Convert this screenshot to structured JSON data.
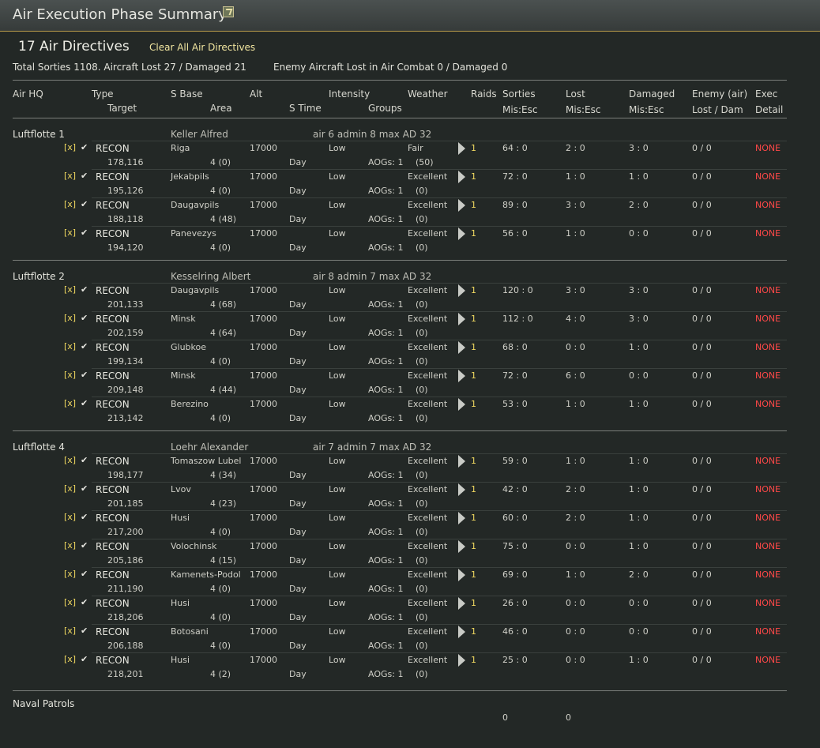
{
  "window": {
    "title": "Air Execution Phase Summary",
    "icon": "map-icon"
  },
  "summary": {
    "directives_count": "17 Air Directives",
    "clear_all_label": "Clear All Air Directives",
    "totals": "Total Sorties 1108. Aircraft Lost 27 / Damaged 21",
    "enemy": "Enemy Aircraft Lost in Air Combat 0 / Damaged 0"
  },
  "headers": {
    "air_hq": "Air HQ",
    "type": "Type",
    "target": "Target",
    "s_base": "S Base",
    "area": "Area",
    "alt": "Alt",
    "s_time": "S Time",
    "intensity": "Intensity",
    "groups": "Groups",
    "weather": "Weather",
    "raids": "Raids",
    "sorties": "Sorties",
    "sorties_sub": "Mis:Esc",
    "lost": "Lost",
    "lost_sub": "Mis:Esc",
    "damaged": "Damaged",
    "damaged_sub": "Mis:Esc",
    "enemy": "Enemy (air)",
    "enemy_sub": "Lost / Dam",
    "exec": "Exec",
    "exec_sub": "Detail"
  },
  "hqs": [
    {
      "name": "Luftflotte 1",
      "commander": "Keller Alfred",
      "stats": "air 6    admin 8    max AD 32",
      "rows": [
        {
          "checkbox": "[x]",
          "type": "RECON",
          "target": "178,116",
          "base": "Riga",
          "area": "4 (0)",
          "alt": "17000",
          "time": "Day",
          "intensity": "Low",
          "groups": "AOGs: 1",
          "weather": "Fair",
          "weather_sub": "(50)",
          "raids": "1",
          "sorties": "64 : 0",
          "lost": "2 : 0",
          "damaged": "3 : 0",
          "enemy": "0 / 0",
          "exec": "NONE"
        },
        {
          "checkbox": "[x]",
          "type": "RECON",
          "target": "195,126",
          "base": "Jekabpils",
          "area": "4 (0)",
          "alt": "17000",
          "time": "Day",
          "intensity": "Low",
          "groups": "AOGs: 1",
          "weather": "Excellent",
          "weather_sub": "(0)",
          "raids": "1",
          "sorties": "72 : 0",
          "lost": "1 : 0",
          "damaged": "1 : 0",
          "enemy": "0 / 0",
          "exec": "NONE"
        },
        {
          "checkbox": "[x]",
          "type": "RECON",
          "target": "188,118",
          "base": "Daugavpils",
          "area": "4 (48)",
          "alt": "17000",
          "time": "Day",
          "intensity": "Low",
          "groups": "AOGs: 1",
          "weather": "Excellent",
          "weather_sub": "(0)",
          "raids": "1",
          "sorties": "89 : 0",
          "lost": "3 : 0",
          "damaged": "2 : 0",
          "enemy": "0 / 0",
          "exec": "NONE"
        },
        {
          "checkbox": "[x]",
          "type": "RECON",
          "target": "194,120",
          "base": "Panevezys",
          "area": "4 (0)",
          "alt": "17000",
          "time": "Day",
          "intensity": "Low",
          "groups": "AOGs: 1",
          "weather": "Excellent",
          "weather_sub": "(0)",
          "raids": "1",
          "sorties": "56 : 0",
          "lost": "1 : 0",
          "damaged": "0 : 0",
          "enemy": "0 / 0",
          "exec": "NONE"
        }
      ]
    },
    {
      "name": "Luftflotte 2",
      "commander": "Kesselring Albert",
      "stats": "air 8    admin 7    max AD 32",
      "rows": [
        {
          "checkbox": "[x]",
          "type": "RECON",
          "target": "201,133",
          "base": "Daugavpils",
          "area": "4 (68)",
          "alt": "17000",
          "time": "Day",
          "intensity": "Low",
          "groups": "AOGs: 1",
          "weather": "Excellent",
          "weather_sub": "(0)",
          "raids": "1",
          "sorties": "120 : 0",
          "lost": "3 : 0",
          "damaged": "3 : 0",
          "enemy": "0 / 0",
          "exec": "NONE"
        },
        {
          "checkbox": "[x]",
          "type": "RECON",
          "target": "202,159",
          "base": "Minsk",
          "area": "4 (64)",
          "alt": "17000",
          "time": "Day",
          "intensity": "Low",
          "groups": "AOGs: 1",
          "weather": "Excellent",
          "weather_sub": "(0)",
          "raids": "1",
          "sorties": "112 : 0",
          "lost": "4 : 0",
          "damaged": "3 : 0",
          "enemy": "0 / 0",
          "exec": "NONE"
        },
        {
          "checkbox": "[x]",
          "type": "RECON",
          "target": "199,134",
          "base": "Glubkoe",
          "area": "4 (0)",
          "alt": "17000",
          "time": "Day",
          "intensity": "Low",
          "groups": "AOGs: 1",
          "weather": "Excellent",
          "weather_sub": "(0)",
          "raids": "1",
          "sorties": "68 : 0",
          "lost": "0 : 0",
          "damaged": "1 : 0",
          "enemy": "0 / 0",
          "exec": "NONE"
        },
        {
          "checkbox": "[x]",
          "type": "RECON",
          "target": "209,148",
          "base": "Minsk",
          "area": "4 (44)",
          "alt": "17000",
          "time": "Day",
          "intensity": "Low",
          "groups": "AOGs: 1",
          "weather": "Excellent",
          "weather_sub": "(0)",
          "raids": "1",
          "sorties": "72 : 0",
          "lost": "6 : 0",
          "damaged": "0 : 0",
          "enemy": "0 / 0",
          "exec": "NONE"
        },
        {
          "checkbox": "[x]",
          "type": "RECON",
          "target": "213,142",
          "base": "Berezino",
          "area": "4 (0)",
          "alt": "17000",
          "time": "Day",
          "intensity": "Low",
          "groups": "AOGs: 1",
          "weather": "Excellent",
          "weather_sub": "(0)",
          "raids": "1",
          "sorties": "53 : 0",
          "lost": "1 : 0",
          "damaged": "1 : 0",
          "enemy": "0 / 0",
          "exec": "NONE"
        }
      ]
    },
    {
      "name": "Luftflotte 4",
      "commander": "Loehr Alexander",
      "stats": "air 7    admin 7    max AD 32",
      "rows": [
        {
          "checkbox": "[x]",
          "type": "RECON",
          "target": "198,177",
          "base": "Tomaszow Lubel",
          "area": "4 (34)",
          "alt": "17000",
          "time": "Day",
          "intensity": "Low",
          "groups": "AOGs: 1",
          "weather": "Excellent",
          "weather_sub": "(0)",
          "raids": "1",
          "sorties": "59 : 0",
          "lost": "1 : 0",
          "damaged": "1 : 0",
          "enemy": "0 / 0",
          "exec": "NONE"
        },
        {
          "checkbox": "[x]",
          "type": "RECON",
          "target": "201,185",
          "base": "Lvov",
          "area": "4 (23)",
          "alt": "17000",
          "time": "Day",
          "intensity": "Low",
          "groups": "AOGs: 1",
          "weather": "Excellent",
          "weather_sub": "(0)",
          "raids": "1",
          "sorties": "42 : 0",
          "lost": "2 : 0",
          "damaged": "1 : 0",
          "enemy": "0 / 0",
          "exec": "NONE"
        },
        {
          "checkbox": "[x]",
          "type": "RECON",
          "target": "217,200",
          "base": "Husi",
          "area": "4 (0)",
          "alt": "17000",
          "time": "Day",
          "intensity": "Low",
          "groups": "AOGs: 1",
          "weather": "Excellent",
          "weather_sub": "(0)",
          "raids": "1",
          "sorties": "60 : 0",
          "lost": "2 : 0",
          "damaged": "1 : 0",
          "enemy": "0 / 0",
          "exec": "NONE"
        },
        {
          "checkbox": "[x]",
          "type": "RECON",
          "target": "205,186",
          "base": "Volochinsk",
          "area": "4 (15)",
          "alt": "17000",
          "time": "Day",
          "intensity": "Low",
          "groups": "AOGs: 1",
          "weather": "Excellent",
          "weather_sub": "(0)",
          "raids": "1",
          "sorties": "75 : 0",
          "lost": "0 : 0",
          "damaged": "1 : 0",
          "enemy": "0 / 0",
          "exec": "NONE"
        },
        {
          "checkbox": "[x]",
          "type": "RECON",
          "target": "211,190",
          "base": "Kamenets-Podol",
          "area": "4 (0)",
          "alt": "17000",
          "time": "Day",
          "intensity": "Low",
          "groups": "AOGs: 1",
          "weather": "Excellent",
          "weather_sub": "(0)",
          "raids": "1",
          "sorties": "69 : 0",
          "lost": "1 : 0",
          "damaged": "2 : 0",
          "enemy": "0 / 0",
          "exec": "NONE"
        },
        {
          "checkbox": "[x]",
          "type": "RECON",
          "target": "218,206",
          "base": "Husi",
          "area": "4 (0)",
          "alt": "17000",
          "time": "Day",
          "intensity": "Low",
          "groups": "AOGs: 1",
          "weather": "Excellent",
          "weather_sub": "(0)",
          "raids": "1",
          "sorties": "26 : 0",
          "lost": "0 : 0",
          "damaged": "0 : 0",
          "enemy": "0 / 0",
          "exec": "NONE"
        },
        {
          "checkbox": "[x]",
          "type": "RECON",
          "target": "206,188",
          "base": "Botosani",
          "area": "4 (0)",
          "alt": "17000",
          "time": "Day",
          "intensity": "Low",
          "groups": "AOGs: 1",
          "weather": "Excellent",
          "weather_sub": "(0)",
          "raids": "1",
          "sorties": "46 : 0",
          "lost": "0 : 0",
          "damaged": "0 : 0",
          "enemy": "0 / 0",
          "exec": "NONE"
        },
        {
          "checkbox": "[x]",
          "type": "RECON",
          "target": "218,201",
          "base": "Husi",
          "area": "4 (2)",
          "alt": "17000",
          "time": "Day",
          "intensity": "Low",
          "groups": "AOGs: 1",
          "weather": "Excellent",
          "weather_sub": "(0)",
          "raids": "1",
          "sorties": "25 : 0",
          "lost": "0 : 0",
          "damaged": "1 : 0",
          "enemy": "0 / 0",
          "exec": "NONE"
        }
      ]
    }
  ],
  "naval": {
    "label": "Naval Patrols",
    "sorties": "0",
    "lost": "0"
  },
  "colors": {
    "accent_yellow": "#f0d860",
    "exec_red": "#ff4848",
    "background": "#232826"
  }
}
